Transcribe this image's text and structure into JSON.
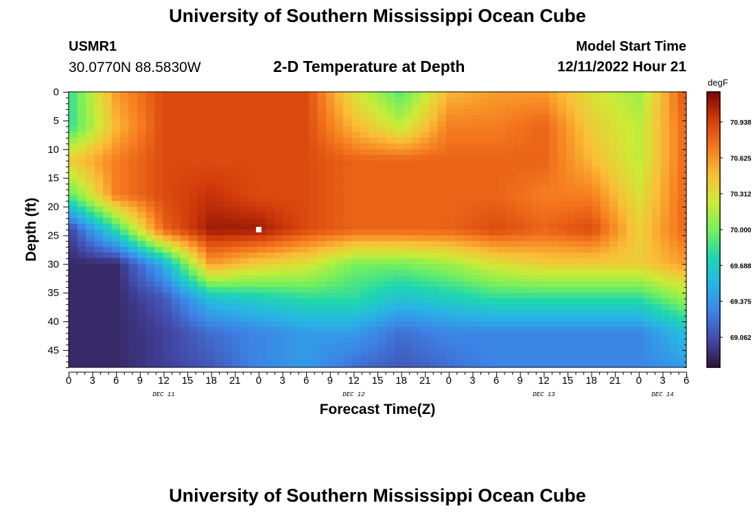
{
  "header": {
    "title": "University of Southern Mississippi Ocean Cube",
    "station_id": "USMR1",
    "coordinates": "30.0770N  88.5830W",
    "plot_title": "2-D Temperature at Depth",
    "start_label": "Model Start Time",
    "start_value": "12/11/2022 Hour 21"
  },
  "footer": {
    "title": "University of Southern Mississippi Ocean Cube"
  },
  "chart_data": {
    "type": "heatmap",
    "title": "2-D Temperature at Depth",
    "xlabel": "Forecast Time(Z)",
    "ylabel": "Depth (ft)",
    "x_tick_labels": [
      "0",
      "3",
      "6",
      "9",
      "12",
      "15",
      "18",
      "21",
      "0",
      "3",
      "6",
      "9",
      "12",
      "15",
      "18",
      "21",
      "0",
      "3",
      "6",
      "9",
      "12",
      "15",
      "18",
      "21",
      "0",
      "3",
      "6"
    ],
    "x_range_hours": [
      0,
      78
    ],
    "date_labels": [
      {
        "label": "DEC 11",
        "hour": 12
      },
      {
        "label": "DEC 12",
        "hour": 36
      },
      {
        "label": "DEC 13",
        "hour": 60
      },
      {
        "label": "DEC 14",
        "hour": 75
      }
    ],
    "y_ticks": [
      0,
      5,
      10,
      15,
      20,
      25,
      30,
      35,
      40,
      45
    ],
    "y_range": [
      0,
      48
    ],
    "y_inverted": true,
    "colorbar": {
      "unit": "degF",
      "ticks": [
        "70.938",
        "70.625",
        "70.312",
        "70.000",
        "69.688",
        "69.375",
        "69.062"
      ],
      "min": 68.8,
      "max": 71.2
    },
    "depth_levels": [
      0,
      6,
      12,
      18,
      24,
      30,
      36,
      42,
      48
    ],
    "time_hours": [
      0,
      6,
      12,
      18,
      24,
      30,
      36,
      42,
      48,
      54,
      60,
      66,
      72,
      78
    ],
    "values": [
      [
        69.8,
        70.6,
        70.9,
        70.9,
        70.9,
        70.9,
        70.3,
        69.9,
        70.5,
        70.6,
        70.6,
        70.3,
        70.1,
        70.9
      ],
      [
        69.8,
        70.5,
        70.9,
        70.9,
        70.9,
        70.9,
        70.5,
        70.2,
        70.7,
        70.7,
        70.8,
        70.4,
        70.2,
        70.8
      ],
      [
        70.4,
        70.7,
        70.9,
        70.9,
        70.9,
        70.9,
        70.8,
        70.8,
        70.8,
        70.8,
        70.8,
        70.5,
        70.2,
        70.8
      ],
      [
        69.9,
        70.7,
        70.9,
        71.0,
        70.9,
        70.9,
        70.8,
        70.8,
        70.8,
        70.8,
        70.7,
        70.7,
        70.3,
        70.8
      ],
      [
        69.0,
        69.8,
        70.8,
        71.1,
        71.1,
        70.9,
        70.8,
        70.8,
        70.8,
        70.9,
        70.8,
        70.9,
        70.4,
        70.8
      ],
      [
        68.9,
        68.9,
        69.5,
        70.6,
        70.4,
        70.3,
        70.0,
        70.0,
        70.1,
        70.3,
        70.4,
        70.4,
        70.4,
        70.6
      ],
      [
        68.9,
        68.9,
        69.1,
        69.6,
        69.7,
        69.8,
        69.8,
        69.6,
        69.7,
        69.8,
        69.8,
        69.8,
        69.8,
        70.1
      ],
      [
        68.9,
        68.9,
        69.0,
        69.2,
        69.3,
        69.4,
        69.4,
        69.2,
        69.3,
        69.3,
        69.3,
        69.3,
        69.3,
        69.6
      ],
      [
        68.9,
        68.9,
        69.0,
        69.1,
        69.3,
        69.4,
        69.2,
        69.1,
        69.2,
        69.3,
        69.3,
        69.3,
        69.3,
        69.4
      ]
    ],
    "marker": {
      "hour": 24,
      "depth": 24
    }
  }
}
